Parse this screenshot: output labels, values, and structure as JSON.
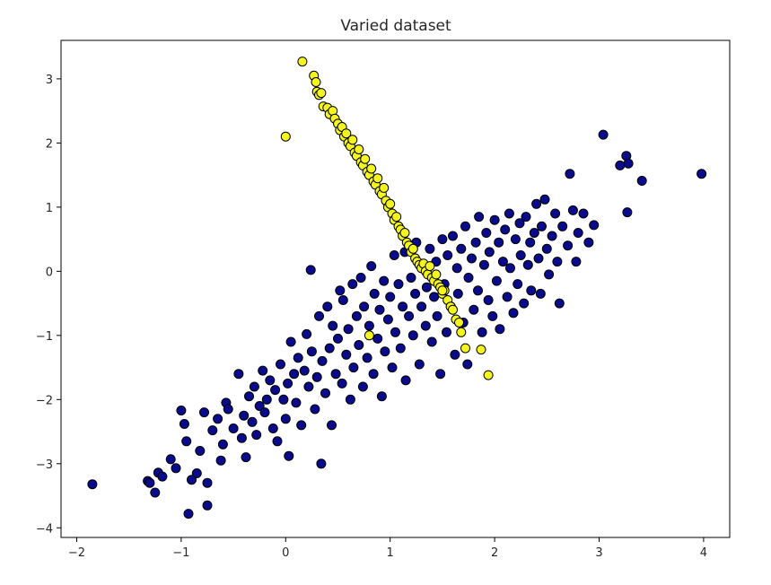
{
  "chart_data": {
    "type": "scatter",
    "title": "Varied dataset",
    "xlabel": "",
    "ylabel": "",
    "xlim": [
      -2.15,
      4.25
    ],
    "ylim": [
      -4.15,
      3.6
    ],
    "xticks": [
      -2,
      -1,
      0,
      1,
      2,
      3,
      4
    ],
    "yticks": [
      -4,
      -3,
      -2,
      -1,
      0,
      1,
      2,
      3
    ],
    "xtick_labels": [
      "−2",
      "−1",
      "0",
      "1",
      "2",
      "3",
      "4"
    ],
    "ytick_labels": [
      "−4",
      "−3",
      "−2",
      "−1",
      "0",
      "1",
      "2",
      "3"
    ],
    "grid": false,
    "legend": "none",
    "series": [
      {
        "color": "#0a0a8c",
        "edgecolor": "#000000",
        "points": [
          [
            -1.85,
            -3.32
          ],
          [
            -1.32,
            -3.27
          ],
          [
            -1.3,
            -3.3
          ],
          [
            -1.25,
            -3.45
          ],
          [
            -1.22,
            -3.14
          ],
          [
            -1.18,
            -3.2
          ],
          [
            -1.1,
            -2.93
          ],
          [
            -1.05,
            -3.07
          ],
          [
            -1.0,
            -2.17
          ],
          [
            -0.97,
            -2.38
          ],
          [
            -0.95,
            -2.65
          ],
          [
            -0.93,
            -3.78
          ],
          [
            -0.9,
            -3.25
          ],
          [
            -0.85,
            -3.15
          ],
          [
            -0.82,
            -2.8
          ],
          [
            -0.78,
            -2.2
          ],
          [
            -0.75,
            -3.65
          ],
          [
            -0.75,
            -3.3
          ],
          [
            -0.7,
            -2.48
          ],
          [
            -0.65,
            -2.3
          ],
          [
            -0.62,
            -2.95
          ],
          [
            -0.6,
            -2.7
          ],
          [
            -0.57,
            -2.05
          ],
          [
            -0.55,
            -2.15
          ],
          [
            -0.5,
            -2.45
          ],
          [
            -0.45,
            -1.6
          ],
          [
            -0.42,
            -2.6
          ],
          [
            -0.4,
            -2.25
          ],
          [
            -0.38,
            -2.9
          ],
          [
            -0.35,
            -1.95
          ],
          [
            -0.32,
            -2.35
          ],
          [
            -0.3,
            -1.8
          ],
          [
            -0.28,
            -2.55
          ],
          [
            -0.25,
            -2.1
          ],
          [
            -0.22,
            -1.55
          ],
          [
            -0.2,
            -2.2
          ],
          [
            -0.18,
            -2.0
          ],
          [
            -0.15,
            -1.7
          ],
          [
            -0.12,
            -2.45
          ],
          [
            -0.1,
            -1.85
          ],
          [
            -0.08,
            -2.65
          ],
          [
            -0.05,
            -1.45
          ],
          [
            -0.02,
            -2.0
          ],
          [
            0.0,
            -2.3
          ],
          [
            0.02,
            -1.75
          ],
          [
            0.03,
            -2.88
          ],
          [
            0.05,
            -1.1
          ],
          [
            0.08,
            -1.6
          ],
          [
            0.1,
            -2.05
          ],
          [
            0.12,
            -1.35
          ],
          [
            0.15,
            -2.4
          ],
          [
            0.18,
            -1.55
          ],
          [
            0.2,
            -0.98
          ],
          [
            0.22,
            -1.8
          ],
          [
            0.24,
            0.02
          ],
          [
            0.25,
            -1.25
          ],
          [
            0.28,
            -2.15
          ],
          [
            0.3,
            -1.65
          ],
          [
            0.32,
            -0.7
          ],
          [
            0.34,
            -3.0
          ],
          [
            0.35,
            -1.4
          ],
          [
            0.38,
            -1.9
          ],
          [
            0.4,
            -0.55
          ],
          [
            0.42,
            -1.2
          ],
          [
            0.44,
            -2.4
          ],
          [
            0.45,
            -0.85
          ],
          [
            0.48,
            -1.6
          ],
          [
            0.5,
            -1.05
          ],
          [
            0.52,
            -0.3
          ],
          [
            0.54,
            -1.75
          ],
          [
            0.55,
            -0.45
          ],
          [
            0.58,
            -1.3
          ],
          [
            0.6,
            -0.9
          ],
          [
            0.62,
            -2.0
          ],
          [
            0.64,
            -0.2
          ],
          [
            0.65,
            -1.5
          ],
          [
            0.68,
            -0.7
          ],
          [
            0.7,
            -1.15
          ],
          [
            0.72,
            -0.1
          ],
          [
            0.74,
            -1.8
          ],
          [
            0.75,
            -0.55
          ],
          [
            0.78,
            -1.35
          ],
          [
            0.8,
            -0.85
          ],
          [
            0.82,
            0.08
          ],
          [
            0.84,
            -1.6
          ],
          [
            0.85,
            -0.35
          ],
          [
            0.88,
            -1.05
          ],
          [
            0.9,
            -0.6
          ],
          [
            0.92,
            -1.95
          ],
          [
            0.94,
            -0.15
          ],
          [
            0.95,
            -1.25
          ],
          [
            0.98,
            -0.75
          ],
          [
            1.0,
            -0.4
          ],
          [
            1.02,
            -1.5
          ],
          [
            1.04,
            0.25
          ],
          [
            1.05,
            -0.95
          ],
          [
            1.08,
            -0.2
          ],
          [
            1.1,
            -1.2
          ],
          [
            1.12,
            -0.55
          ],
          [
            1.14,
            0.3
          ],
          [
            1.15,
            -1.7
          ],
          [
            1.18,
            -0.7
          ],
          [
            1.2,
            -0.1
          ],
          [
            1.22,
            -1.0
          ],
          [
            1.24,
            -0.35
          ],
          [
            1.25,
            0.45
          ],
          [
            1.28,
            -1.45
          ],
          [
            1.3,
            -0.55
          ],
          [
            1.32,
            0.1
          ],
          [
            1.34,
            -0.85
          ],
          [
            1.35,
            -0.25
          ],
          [
            1.38,
            0.35
          ],
          [
            1.4,
            -1.1
          ],
          [
            1.42,
            -0.4
          ],
          [
            1.44,
            0.15
          ],
          [
            1.45,
            -0.7
          ],
          [
            1.48,
            -1.6
          ],
          [
            1.5,
            0.5
          ],
          [
            1.52,
            -0.2
          ],
          [
            1.54,
            -0.95
          ],
          [
            1.55,
            0.25
          ],
          [
            1.58,
            -0.55
          ],
          [
            1.6,
            0.55
          ],
          [
            1.62,
            -1.3
          ],
          [
            1.64,
            0.05
          ],
          [
            1.65,
            -0.35
          ],
          [
            1.68,
            0.35
          ],
          [
            1.7,
            -0.8
          ],
          [
            1.72,
            0.7
          ],
          [
            1.74,
            -1.45
          ],
          [
            1.75,
            -0.1
          ],
          [
            1.78,
            0.2
          ],
          [
            1.8,
            -0.6
          ],
          [
            1.82,
            0.45
          ],
          [
            1.84,
            -0.3
          ],
          [
            1.85,
            0.85
          ],
          [
            1.88,
            -0.95
          ],
          [
            1.9,
            0.1
          ],
          [
            1.92,
            0.6
          ],
          [
            1.94,
            -0.45
          ],
          [
            1.95,
            0.3
          ],
          [
            1.98,
            -0.7
          ],
          [
            2.0,
            0.8
          ],
          [
            2.02,
            -0.15
          ],
          [
            2.04,
            0.45
          ],
          [
            2.05,
            -0.9
          ],
          [
            2.08,
            0.15
          ],
          [
            2.1,
            0.65
          ],
          [
            2.12,
            -0.4
          ],
          [
            2.14,
            0.9
          ],
          [
            2.15,
            0.05
          ],
          [
            2.18,
            -0.65
          ],
          [
            2.2,
            0.5
          ],
          [
            2.22,
            -0.2
          ],
          [
            2.24,
            0.75
          ],
          [
            2.25,
            0.25
          ],
          [
            2.28,
            -0.5
          ],
          [
            2.3,
            0.85
          ],
          [
            2.32,
            0.1
          ],
          [
            2.34,
            0.45
          ],
          [
            2.35,
            -0.3
          ],
          [
            2.38,
            0.6
          ],
          [
            2.4,
            1.05
          ],
          [
            2.42,
            0.2
          ],
          [
            2.44,
            -0.35
          ],
          [
            2.45,
            0.7
          ],
          [
            2.48,
            1.12
          ],
          [
            2.5,
            0.35
          ],
          [
            2.52,
            -0.05
          ],
          [
            2.55,
            0.55
          ],
          [
            2.58,
            0.9
          ],
          [
            2.6,
            0.15
          ],
          [
            2.62,
            -0.5
          ],
          [
            2.65,
            0.7
          ],
          [
            2.7,
            0.4
          ],
          [
            2.72,
            1.52
          ],
          [
            2.75,
            0.95
          ],
          [
            2.78,
            0.15
          ],
          [
            2.8,
            0.6
          ],
          [
            2.85,
            0.9
          ],
          [
            2.9,
            0.45
          ],
          [
            2.95,
            0.72
          ],
          [
            3.04,
            2.13
          ],
          [
            3.2,
            1.65
          ],
          [
            3.26,
            1.8
          ],
          [
            3.27,
            0.92
          ],
          [
            3.28,
            1.68
          ],
          [
            3.41,
            1.41
          ],
          [
            3.98,
            1.52
          ]
        ]
      },
      {
        "color": "#f5f51e",
        "edgecolor": "#000000",
        "points": [
          [
            0.16,
            3.27
          ],
          [
            0.27,
            3.05
          ],
          [
            0.29,
            2.95
          ],
          [
            0.3,
            2.8
          ],
          [
            0.32,
            2.75
          ],
          [
            0.34,
            2.78
          ],
          [
            0.36,
            2.57
          ],
          [
            0.4,
            2.55
          ],
          [
            0.42,
            2.45
          ],
          [
            0.45,
            2.5
          ],
          [
            0.47,
            2.38
          ],
          [
            0.5,
            2.3
          ],
          [
            0.52,
            2.2
          ],
          [
            0.54,
            2.25
          ],
          [
            0.56,
            2.1
          ],
          [
            0.58,
            2.15
          ],
          [
            0.6,
            2.0
          ],
          [
            0.62,
            1.95
          ],
          [
            0.64,
            2.05
          ],
          [
            0.66,
            1.85
          ],
          [
            0.68,
            1.8
          ],
          [
            0.7,
            1.9
          ],
          [
            0.72,
            1.7
          ],
          [
            0.74,
            1.65
          ],
          [
            0.76,
            1.75
          ],
          [
            0.78,
            1.55
          ],
          [
            0.8,
            1.5
          ],
          [
            0.82,
            1.6
          ],
          [
            0.84,
            1.4
          ],
          [
            0.86,
            1.35
          ],
          [
            0.88,
            1.45
          ],
          [
            0.9,
            1.25
          ],
          [
            0.92,
            1.2
          ],
          [
            0.94,
            1.3
          ],
          [
            0.96,
            1.1
          ],
          [
            0.98,
            1.0
          ],
          [
            1.0,
            1.05
          ],
          [
            1.02,
            0.9
          ],
          [
            1.04,
            0.8
          ],
          [
            1.06,
            0.85
          ],
          [
            1.08,
            0.7
          ],
          [
            1.1,
            0.65
          ],
          [
            1.12,
            0.55
          ],
          [
            1.14,
            0.6
          ],
          [
            1.16,
            0.45
          ],
          [
            1.18,
            0.4
          ],
          [
            1.2,
            0.3
          ],
          [
            1.22,
            0.35
          ],
          [
            1.24,
            0.2
          ],
          [
            1.26,
            0.15
          ],
          [
            1.28,
            0.1
          ],
          [
            1.3,
            0.05
          ],
          [
            1.32,
            0.12
          ],
          [
            1.34,
            0.0
          ],
          [
            1.36,
            -0.05
          ],
          [
            1.38,
            0.08
          ],
          [
            1.4,
            -0.1
          ],
          [
            1.42,
            -0.15
          ],
          [
            1.44,
            -0.05
          ],
          [
            1.46,
            -0.2
          ],
          [
            1.48,
            -0.25
          ],
          [
            1.5,
            -0.35
          ],
          [
            1.52,
            -0.3
          ],
          [
            1.55,
            -0.45
          ],
          [
            1.58,
            -0.55
          ],
          [
            1.6,
            -0.6
          ],
          [
            1.63,
            -0.75
          ],
          [
            1.66,
            -0.8
          ],
          [
            1.68,
            -0.95
          ],
          [
            1.72,
            -1.2
          ],
          [
            1.87,
            -1.22
          ],
          [
            1.94,
            -1.62
          ],
          [
            0.0,
            2.1
          ],
          [
            0.8,
            -1.0
          ],
          [
            1.5,
            -0.3
          ]
        ]
      }
    ]
  }
}
